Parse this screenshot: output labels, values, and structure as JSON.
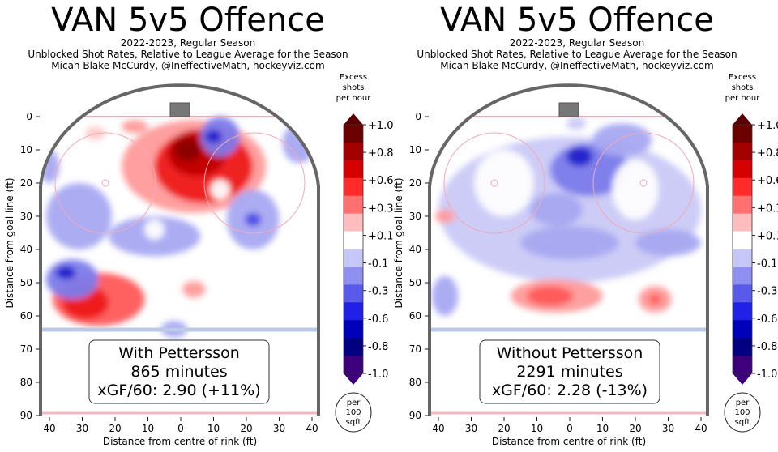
{
  "chart_data": [
    {
      "type": "heatmap",
      "title": "VAN 5v5 Offence",
      "subtitle_lines": [
        "2022-2023, Regular Season",
        "Unblocked Shot Rates, Relative to League Average for the Season",
        "Micah Blake McCurdy, @IneffectiveMath, hockeyviz.com"
      ],
      "xlabel": "Distance from centre of rink (ft)",
      "ylabel": "Distance from goal line (ft)",
      "x_ticks": [
        "40",
        "30",
        "20",
        "10",
        "0",
        "10",
        "20",
        "30",
        "40"
      ],
      "y_ticks": [
        "0",
        "10",
        "20",
        "30",
        "40",
        "50",
        "60",
        "70",
        "80",
        "90"
      ],
      "xlim": [
        -42.5,
        42.5
      ],
      "ylim": [
        0,
        90
      ],
      "colorbar": {
        "title_lines": [
          "Excess",
          "shots",
          "per hour"
        ],
        "tick_labels": [
          "+1.0",
          "+0.8",
          "+0.6",
          "+0.3",
          "+0.1",
          "-0.1",
          "-0.3",
          "-0.6",
          "-0.8",
          "-1.0"
        ],
        "unit_lines": [
          "per",
          "100",
          "sqft"
        ]
      },
      "legend_box": {
        "line1": "With Pettersson",
        "line2": "865 minutes",
        "line3": "xGF/60: 2.90 (+11%)"
      },
      "blobs": [
        {
          "x": 4,
          "y": 15,
          "rx": 22,
          "ry": 14,
          "level": 0.25
        },
        {
          "x": 7,
          "y": 15,
          "rx": 15,
          "ry": 11,
          "level": 0.55
        },
        {
          "x": 5,
          "y": 11,
          "rx": 9,
          "ry": 7,
          "level": 0.85
        },
        {
          "x": 2,
          "y": 10,
          "rx": 4,
          "ry": 3.5,
          "level": 1.0
        },
        {
          "x": -25,
          "y": 55,
          "rx": 14,
          "ry": 8,
          "level": 0.3
        },
        {
          "x": -29,
          "y": 56,
          "rx": 7,
          "ry": 5,
          "level": 0.5
        },
        {
          "x": 4,
          "y": 52,
          "rx": 3.5,
          "ry": 2.5,
          "level": 0.2
        },
        {
          "x": -14,
          "y": 3,
          "rx": 4,
          "ry": 2,
          "level": 0.15
        },
        {
          "x": -26,
          "y": 5,
          "rx": 3,
          "ry": 2,
          "level": 0.1
        },
        {
          "x": -2,
          "y": 64,
          "rx": 4,
          "ry": 2.5,
          "level": -0.2
        },
        {
          "x": 12,
          "y": 6,
          "rx": 6,
          "ry": 6,
          "level": -0.3
        },
        {
          "x": 10,
          "y": 6,
          "rx": 2.5,
          "ry": 2,
          "level": -0.6
        },
        {
          "x": 22,
          "y": 31,
          "rx": 8,
          "ry": 9,
          "level": -0.25
        },
        {
          "x": 22,
          "y": 31,
          "rx": 2.5,
          "ry": 2,
          "level": -0.5
        },
        {
          "x": -31,
          "y": 30,
          "rx": 10,
          "ry": 10,
          "level": -0.2
        },
        {
          "x": -33,
          "y": 49,
          "rx": 8,
          "ry": 6,
          "level": -0.3
        },
        {
          "x": -35,
          "y": 47,
          "rx": 3,
          "ry": 2,
          "level": -0.6
        },
        {
          "x": -8,
          "y": 36,
          "rx": 14,
          "ry": 6,
          "level": -0.15
        },
        {
          "x": 36,
          "y": 8,
          "rx": 5,
          "ry": 6,
          "level": -0.15
        },
        {
          "x": -40,
          "y": 15,
          "rx": 3,
          "ry": 5,
          "level": -0.15
        },
        {
          "x": -8,
          "y": 34,
          "rx": 3,
          "ry": 3,
          "level": 0.0
        },
        {
          "x": 12,
          "y": 22,
          "rx": 3,
          "ry": 3,
          "level": 0.0
        },
        {
          "x": 30,
          "y": 46,
          "rx": 6,
          "ry": 4,
          "level": 0.0
        }
      ]
    },
    {
      "type": "heatmap",
      "title": "VAN 5v5 Offence",
      "subtitle_lines": [
        "2022-2023, Regular Season",
        "Unblocked Shot Rates, Relative to League Average for the Season",
        "Micah Blake McCurdy, @IneffectiveMath, hockeyviz.com"
      ],
      "xlabel": "Distance from centre of rink (ft)",
      "ylabel": "Distance from goal line (ft)",
      "x_ticks": [
        "40",
        "30",
        "20",
        "10",
        "0",
        "10",
        "20",
        "30",
        "40"
      ],
      "y_ticks": [
        "0",
        "10",
        "20",
        "30",
        "40",
        "50",
        "60",
        "70",
        "80",
        "90"
      ],
      "xlim": [
        -42.5,
        42.5
      ],
      "ylim": [
        0,
        90
      ],
      "colorbar": {
        "title_lines": [
          "Excess",
          "shots",
          "per hour"
        ],
        "tick_labels": [
          "+1.0",
          "+0.8",
          "+0.6",
          "+0.3",
          "+0.1",
          "-0.1",
          "-0.3",
          "-0.6",
          "-0.8",
          "-1.0"
        ],
        "unit_lines": [
          "per",
          "100",
          "sqft"
        ]
      },
      "legend_box": {
        "line1": "Without Pettersson",
        "line2": "2291 minutes",
        "line3": "xGF/60: 2.28 (-13%)"
      },
      "blobs": [
        {
          "x": 0,
          "y": 28,
          "rx": 40,
          "ry": 22,
          "level": -0.12
        },
        {
          "x": 6,
          "y": 16,
          "rx": 12,
          "ry": 8,
          "level": -0.3
        },
        {
          "x": 3,
          "y": 12,
          "rx": 4,
          "ry": 3,
          "level": -0.6
        },
        {
          "x": -4,
          "y": 28,
          "rx": 8,
          "ry": 5,
          "level": -0.25
        },
        {
          "x": 0,
          "y": 38,
          "rx": 15,
          "ry": 5,
          "level": -0.2
        },
        {
          "x": 16,
          "y": 7,
          "rx": 9,
          "ry": 5,
          "level": -0.25
        },
        {
          "x": 30,
          "y": 38,
          "rx": 10,
          "ry": 4,
          "level": -0.25
        },
        {
          "x": -38,
          "y": 54,
          "rx": 4,
          "ry": 6,
          "level": -0.2
        },
        {
          "x": 2,
          "y": 2,
          "rx": 3,
          "ry": 2,
          "level": -0.05
        },
        {
          "x": -4,
          "y": 54,
          "rx": 14,
          "ry": 5,
          "level": 0.2
        },
        {
          "x": -6,
          "y": 54,
          "rx": 7,
          "ry": 3,
          "level": 0.35
        },
        {
          "x": 26,
          "y": 55,
          "rx": 5,
          "ry": 4,
          "level": 0.25
        },
        {
          "x": 26,
          "y": 55,
          "rx": 2,
          "ry": 1.5,
          "level": 0.45
        },
        {
          "x": -38,
          "y": 30,
          "rx": 3,
          "ry": 2,
          "level": 0.15
        },
        {
          "x": -20,
          "y": 20,
          "rx": 9,
          "ry": 10,
          "level": 0.0
        },
        {
          "x": 20,
          "y": 22,
          "rx": 7,
          "ry": 9,
          "level": 0.0
        }
      ]
    }
  ]
}
